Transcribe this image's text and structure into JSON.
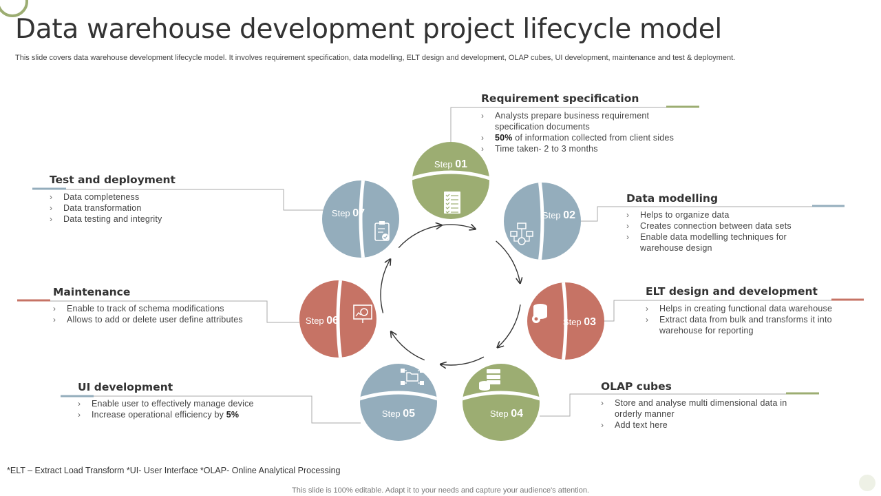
{
  "title": "Data warehouse development project lifecycle model",
  "subtitle": "This slide covers data warehouse development lifecycle model. It involves requirement specification, data modelling, ELT design and development, OLAP cubes, UI development, maintenance and test & deployment.",
  "colors": {
    "green": "#9cad72",
    "blue": "#94adbc",
    "red": "#c67365",
    "line": "#a9a9a9",
    "arrow": "#333333"
  },
  "step_word": "Step",
  "steps": [
    {
      "num": "01",
      "heading": "Requirement specification",
      "icon": "checklist-icon",
      "bullets": [
        {
          "text": "Analysts prepare business requirement"
        },
        {
          "text": "specification documents",
          "cont": true
        },
        {
          "bold": "50%",
          "text": " of information collected from client sides"
        },
        {
          "text": "Time taken- 2 to 3 months"
        }
      ]
    },
    {
      "num": "02",
      "heading": "Data modelling",
      "icon": "data-network-icon",
      "bullets": [
        {
          "text": "Helps to organize data"
        },
        {
          "text": "Creates connection between data sets"
        },
        {
          "text": "Enable data modelling techniques for"
        },
        {
          "text": "warehouse design",
          "cont": true
        }
      ]
    },
    {
      "num": "03",
      "heading": "ELT design and development",
      "icon": "database-gear-icon",
      "bullets": [
        {
          "text": "Helps in creating functional data warehouse"
        },
        {
          "text": "Extract data from bulk and transforms it into"
        },
        {
          "text": "warehouse for reporting",
          "cont": true
        }
      ]
    },
    {
      "num": "04",
      "heading": "OLAP cubes",
      "icon": "server-stack-icon",
      "bullets": [
        {
          "text": "Store and analyse multi dimensional data in"
        },
        {
          "text": "orderly manner",
          "cont": true
        },
        {
          "text": "Add text here"
        }
      ]
    },
    {
      "num": "05",
      "heading": "UI development",
      "icon": "folder-network-icon",
      "bullets": [
        {
          "text": "Enable user to effectively  manage device"
        },
        {
          "text": "Increase operational  efficiency by ",
          "bold_after": "5%"
        }
      ]
    },
    {
      "num": "06",
      "heading": "Maintenance",
      "icon": "presentation-chart-icon",
      "bullets": [
        {
          "text": "Enable to track of schema modifications"
        },
        {
          "text": "Allows to add or delete user define attributes"
        }
      ]
    },
    {
      "num": "07",
      "heading": "Test and deployment",
      "icon": "clipboard-check-icon",
      "bullets": [
        {
          "text": "Data completeness"
        },
        {
          "text": "Data transformation"
        },
        {
          "text": "Data testing and integrity"
        }
      ]
    }
  ],
  "footnote": "*ELT – Extract Load Transform  *UI- User Interface  *OLAP- Online Analytical Processing",
  "footer": "This slide is 100% editable. Adapt it to your needs and capture your audience's attention."
}
